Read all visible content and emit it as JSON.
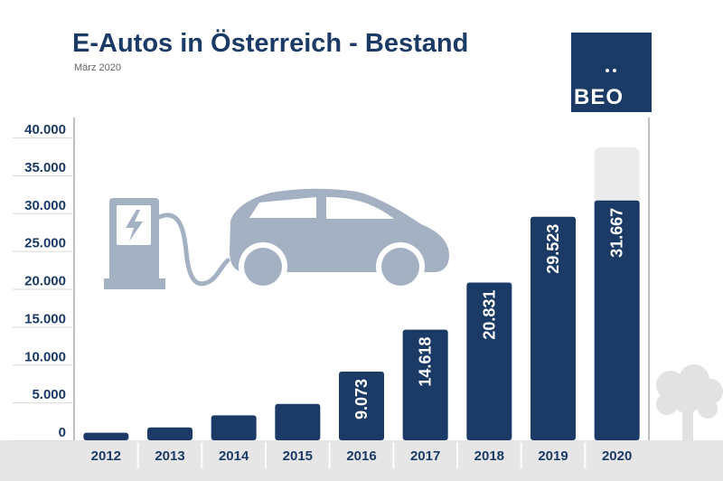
{
  "header": {
    "title": "E-Autos in Österreich - Bestand",
    "subtitle": "März 2020"
  },
  "logo": {
    "text": "BEO",
    "icon": "beo-logo-icon"
  },
  "colors": {
    "bar": "#1b3a66",
    "projection": "#ebebeb",
    "illustration": "#a4b1c3",
    "axis": "#bfbfbf",
    "ground": "#e6e6e6",
    "text": "#1b3a66"
  },
  "decor": {
    "charging_station": "charging-station-icon",
    "car": "car-icon",
    "tree": "tree-icon"
  },
  "chart_data": {
    "type": "bar",
    "title": "E-Autos in Österreich - Bestand",
    "subtitle": "März 2020",
    "xlabel": "",
    "ylabel": "",
    "ylim": [
      0,
      40000
    ],
    "y_ticks": [
      0,
      5000,
      10000,
      15000,
      20000,
      25000,
      30000,
      35000,
      40000
    ],
    "y_tick_labels": [
      "0",
      "5.000",
      "10.000",
      "15.000",
      "20.000",
      "25.000",
      "30.000",
      "35.000",
      "40.000"
    ],
    "grid": true,
    "legend": "none",
    "categories": [
      "2012",
      "2013",
      "2014",
      "2015",
      "2016",
      "2017",
      "2018",
      "2019",
      "2020"
    ],
    "values": [
      1000,
      1700,
      3300,
      4800,
      9073,
      14618,
      20831,
      29523,
      31667
    ],
    "data_labels": [
      "",
      "",
      "",
      "",
      "9.073",
      "14.618",
      "20.831",
      "29.523",
      "31.667"
    ],
    "projection": {
      "category": "2020",
      "value": 38700
    }
  }
}
